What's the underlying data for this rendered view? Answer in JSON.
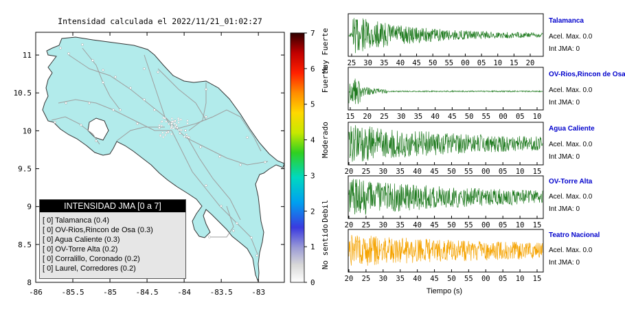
{
  "map": {
    "title": "Intensidad calculada el 2022/11/21_01:02:27",
    "x_ticks": [
      "-86",
      "-85.5",
      "-85",
      "-84.5",
      "-84",
      "-83.5",
      "-83"
    ],
    "y_ticks": [
      "8",
      "8.5",
      "9",
      "9.5",
      "10",
      "10.5",
      "11"
    ],
    "land_color": "#b2ebeb"
  },
  "colorbar": {
    "ticks": [
      "0",
      "1",
      "2",
      "3",
      "4",
      "5",
      "6",
      "7"
    ],
    "labels": [
      "No sentido",
      "Debil",
      "Moderado",
      "Fuerte",
      "Muy Fuerte"
    ]
  },
  "legend": {
    "title": "INTENSIDAD JMA [0 a 7]",
    "items": [
      "[ 0] Talamanca (0.4)",
      "[ 0] OV-Rios,Rincon de Osa (0.3)",
      "[ 0] Agua Caliente (0.3)",
      "[ 0] OV-Torre Alta (0.2)",
      "[ 0] Corralillo, Coronado (0.2)",
      "[ 0] Laurel, Corredores (0.2)"
    ]
  },
  "seismograms": {
    "xlabel": "Tiempo (s)",
    "panels": [
      {
        "station": "Talamanca",
        "acel": "Acel. Max. 0.0",
        "jma": "Int JMA: 0",
        "color": "#1e7a1e",
        "ticks": [
          "25",
          "30",
          "35",
          "40",
          "45",
          "50",
          "55",
          "00",
          "05",
          "10",
          "15",
          "20"
        ]
      },
      {
        "station": "OV-Rios,Rincon de Osa",
        "acel": "Acel. Max. 0.0",
        "jma": "Int JMA: 0",
        "color": "#1e7a1e",
        "ticks": [
          "15",
          "20",
          "25",
          "30",
          "35",
          "40",
          "45",
          "50",
          "55",
          "00",
          "05",
          "10"
        ]
      },
      {
        "station": "Agua Caliente",
        "acel": "Acel. Max. 0.0",
        "jma": "Int JMA: 0",
        "color": "#1e7a1e",
        "ticks": [
          "20",
          "25",
          "30",
          "35",
          "40",
          "45",
          "50",
          "55",
          "00",
          "05",
          "10",
          "15"
        ]
      },
      {
        "station": "OV-Torre Alta",
        "acel": "Acel. Max. 0.0",
        "jma": "Int JMA: 0",
        "color": "#1e7a1e",
        "ticks": [
          "20",
          "25",
          "30",
          "35",
          "40",
          "45",
          "50",
          "55",
          "00",
          "05",
          "10",
          "15"
        ]
      },
      {
        "station": "Teatro Nacional",
        "acel": "Acel. Max. 0.0",
        "jma": "Int JMA: 0",
        "color": "#f5a300",
        "ticks": [
          "20",
          "25",
          "30",
          "35",
          "40",
          "45",
          "50",
          "55",
          "00",
          "05",
          "10",
          "15"
        ]
      }
    ]
  },
  "chart_data": [
    {
      "type": "heatmap",
      "title": "Intensidad calculada el 2022/11/21_01:02:27",
      "xlim": [
        -86,
        -82.65
      ],
      "ylim": [
        8,
        11.3
      ],
      "colorbar_range": [
        0,
        7
      ],
      "colorbar_labels": [
        "No sentido",
        "Debil",
        "Moderado",
        "Fuerte",
        "Muy Fuerte"
      ]
    },
    {
      "type": "line",
      "xlabel": "Tiempo (s)",
      "series": [
        {
          "name": "Talamanca",
          "peak_accel": 0.0,
          "jma": 0
        },
        {
          "name": "OV-Rios,Rincon de Osa",
          "peak_accel": 0.0,
          "jma": 0
        },
        {
          "name": "Agua Caliente",
          "peak_accel": 0.0,
          "jma": 0
        },
        {
          "name": "OV-Torre Alta",
          "peak_accel": 0.0,
          "jma": 0
        },
        {
          "name": "Teatro Nacional",
          "peak_accel": 0.0,
          "jma": 0
        }
      ]
    }
  ]
}
